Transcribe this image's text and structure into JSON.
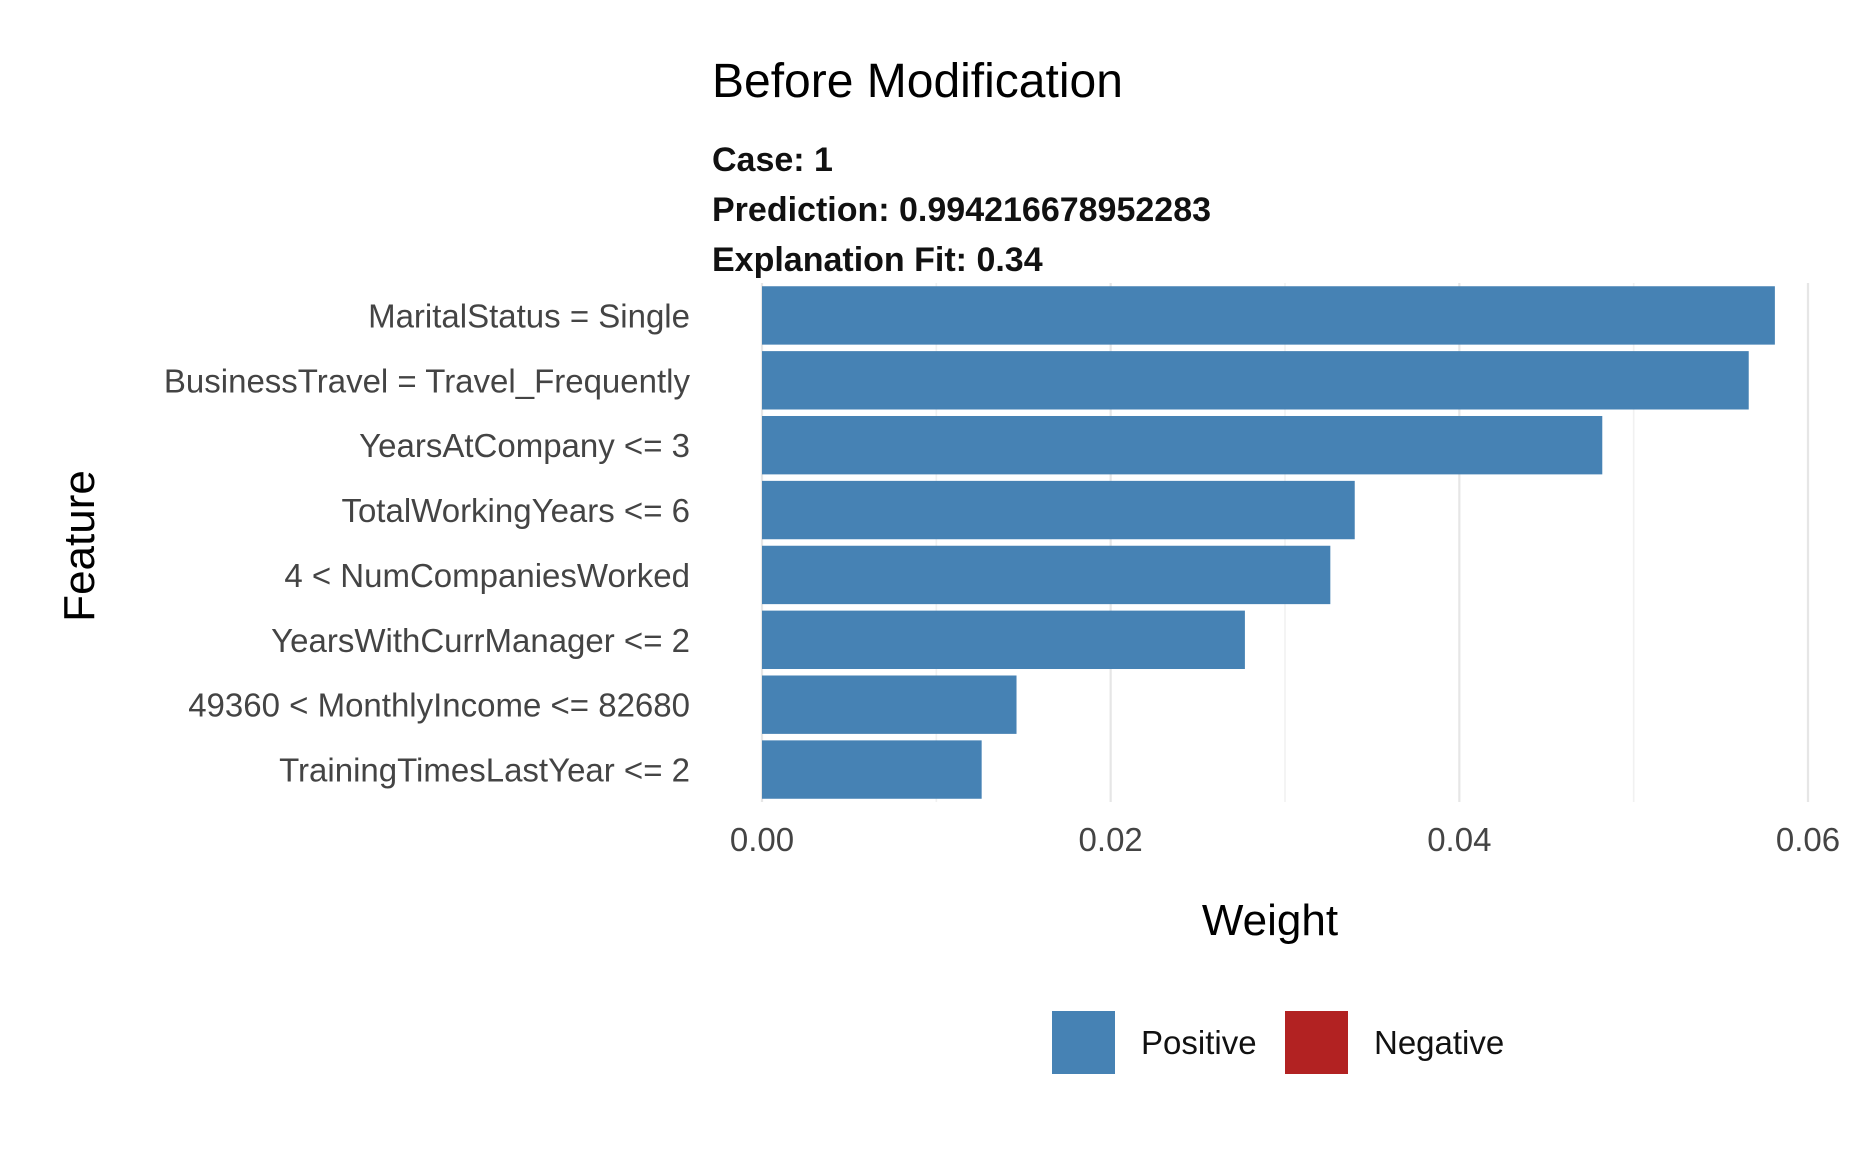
{
  "chart_data": {
    "type": "bar",
    "orientation": "horizontal",
    "title": "Before Modification",
    "subtitle_lines": [
      "Case: 1",
      "Prediction: 0.994216678952283",
      "Explanation Fit: 0.34"
    ],
    "xlabel": "Weight",
    "ylabel": "Feature",
    "xlim": [
      0,
      0.06
    ],
    "xticks": [
      0,
      0.02,
      0.04,
      0.06
    ],
    "xtick_labels": [
      "0.00",
      "0.02",
      "0.04",
      "0.06"
    ],
    "grid": true,
    "legend_position": "bottom",
    "legend": [
      {
        "label": "Positive",
        "color": "#4682B4"
      },
      {
        "label": "Negative",
        "color": "#B22222"
      }
    ],
    "categories": [
      "MaritalStatus = Single",
      "BusinessTravel = Travel_Frequently",
      "YearsAtCompany <= 3",
      "TotalWorkingYears <= 6",
      "4 < NumCompaniesWorked",
      "YearsWithCurrManager <= 2",
      "49360 < MonthlyIncome <= 82680",
      "TrainingTimesLastYear <= 2"
    ],
    "values": [
      0.0581,
      0.0566,
      0.0482,
      0.034,
      0.0326,
      0.0277,
      0.0146,
      0.0126
    ],
    "signs": [
      "Positive",
      "Positive",
      "Positive",
      "Positive",
      "Positive",
      "Positive",
      "Positive",
      "Positive"
    ]
  }
}
